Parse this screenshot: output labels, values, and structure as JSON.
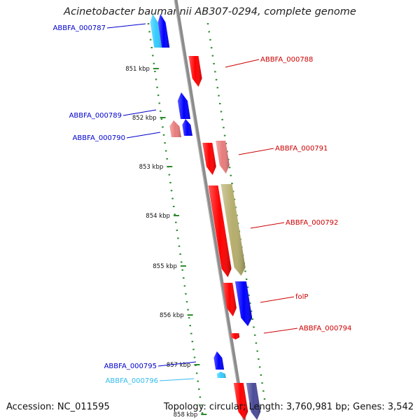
{
  "title": "Acinetobacter baumannii AB307-0294, complete genome",
  "footer": {
    "accession": "Accession: NC_011595",
    "summary": "Topology: circular; Length: 3,760,981 bp; Genes: 3,542"
  },
  "colors": {
    "backbone": "#8c8c8c",
    "tick": "#2e8b2e",
    "forward": "#ff0000",
    "forward_light": "#e87c7c",
    "reverse": "#0000ff",
    "reverse_light": "#33ccff",
    "olive": "#b5ad6b",
    "reverse_muted": "#4a4a9a",
    "label_forward": "#cc0000",
    "label_reverse": "#0000cc",
    "label_cyan": "#33bbee"
  },
  "kbp_ticks": [
    "851 kbp",
    "852 kbp",
    "853 kbp",
    "854 kbp",
    "855 kbp",
    "856 kbp",
    "857 kbp",
    "858 kbp"
  ],
  "genes": [
    {
      "id": "g787a",
      "strand": "reverse",
      "color": "reverse_light",
      "label": "ABBFA_000787"
    },
    {
      "id": "g787b",
      "strand": "reverse",
      "color": "reverse",
      "label": ""
    },
    {
      "id": "g788",
      "strand": "forward",
      "color": "forward",
      "label": "ABBFA_000788"
    },
    {
      "id": "g789",
      "strand": "reverse",
      "color": "reverse",
      "label": "ABBFA_000789"
    },
    {
      "id": "g790a",
      "strand": "reverse",
      "color": "reverse",
      "label": ""
    },
    {
      "id": "g790b",
      "strand": "reverse",
      "color": "forward_light",
      "label": "ABBFA_000790"
    },
    {
      "id": "g791a",
      "strand": "forward",
      "color": "forward",
      "label": ""
    },
    {
      "id": "g791b",
      "strand": "forward",
      "color": "forward_light",
      "label": "ABBFA_000791"
    },
    {
      "id": "g792a",
      "strand": "forward",
      "color": "forward",
      "label": ""
    },
    {
      "id": "g792b",
      "strand": "forward",
      "color": "olive",
      "label": "ABBFA_000792"
    },
    {
      "id": "gfolP_a",
      "strand": "forward",
      "color": "forward",
      "label": ""
    },
    {
      "id": "gfolP_b",
      "strand": "forward",
      "color": "reverse",
      "label": "folP"
    },
    {
      "id": "g794",
      "strand": "forward",
      "color": "forward",
      "label": "ABBFA_000794"
    },
    {
      "id": "g795",
      "strand": "reverse",
      "color": "reverse",
      "label": "ABBFA_000795"
    },
    {
      "id": "g796",
      "strand": "reverse",
      "color": "reverse_light",
      "label": "ABBFA_000796"
    },
    {
      "id": "g797a",
      "strand": "forward",
      "color": "forward",
      "label": ""
    },
    {
      "id": "g797b",
      "strand": "forward",
      "color": "reverse_muted",
      "label": ""
    }
  ]
}
